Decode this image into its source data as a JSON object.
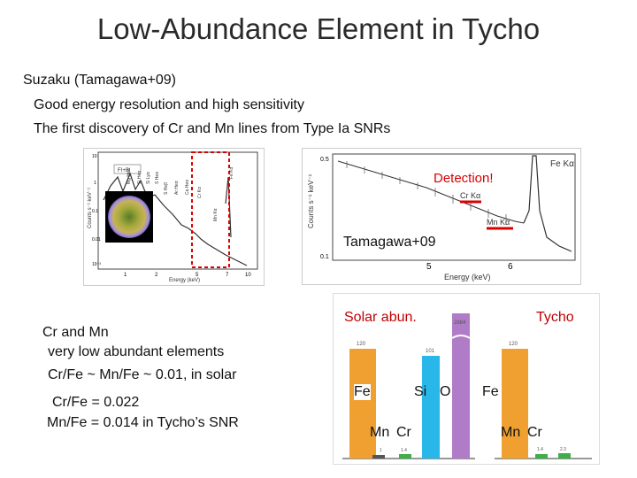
{
  "title": "Low-Abundance Element in Tycho",
  "intro": {
    "line1": "Suzaku (Tamagawa+09)",
    "line2": "Good energy resolution and high sensitivity",
    "line3": "The first discovery of Cr and Mn lines from Type Ia SNRs"
  },
  "spectrum_overview": {
    "legend_label": "FI+BI",
    "line_labels": [
      "Mg Heα",
      "Si Heα",
      "Si Lyα",
      "S Heα",
      "S Heβ",
      "Ar Heα",
      "Ca Heα",
      "Cr Kα",
      "Mn Kα",
      "Fe Kα"
    ],
    "xlabel": "Energy (keV)",
    "ylabel": "Counts s⁻¹ keV⁻¹",
    "x_ticks": [
      "1",
      "2",
      "5",
      "7",
      "10"
    ],
    "y_ticks": [
      "10⁻³",
      "0.01",
      "0.1",
      "1",
      "10"
    ]
  },
  "spectrum_zoom": {
    "annotation": "Detection!",
    "credit": "Tamagawa+09",
    "labels": [
      "Fe Kα",
      "Cr Kα",
      "Mn Kα"
    ],
    "xlabel": "Energy (keV)",
    "ylabel": "Counts s⁻¹ keV⁻¹",
    "x_ticks": [
      "5",
      "6"
    ],
    "y_ticks": [
      "0.5",
      "0.1"
    ],
    "red_color": "#d80000"
  },
  "abundance_text": {
    "line1": "Cr and Mn",
    "line2": "very low abundant elements",
    "line3": "Cr/Fe ~ Mn/Fe ~ 0.01,  in solar",
    "line4": "Cr/Fe = 0.022",
    "line5": "Mn/Fe = 0.014   in Tycho’s SNR"
  },
  "bar_chart": {
    "solar_label": "Solar abun.",
    "tycho_label": "Tycho",
    "fe_label": "Fe",
    "si_label": "Si",
    "o_label": "O",
    "mn_label": "Mn",
    "cr_label": "Cr",
    "fe_value_label": "120",
    "si_value_label": "101",
    "o_value_label": "2884",
    "mn_value_label": "1",
    "cr_value_label": "1.4",
    "tycho_fe_value_label": "120",
    "tycho_mn_value_label": "1.4",
    "tycho_cr_value_label": "2.3",
    "colors": {
      "fe": "#f0a030",
      "si": "#29b6e8",
      "o": "#b07cc8",
      "cr": "#3fae49",
      "mn": "#555555"
    }
  }
}
